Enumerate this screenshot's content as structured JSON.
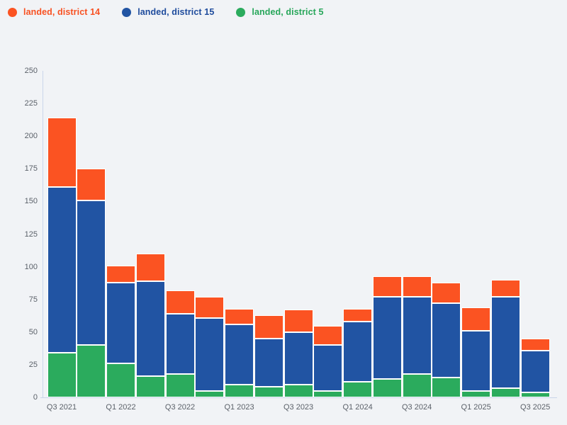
{
  "page": {
    "background_color": "#f1f3f6",
    "axis_line_color": "#c9d5ea",
    "tick_label_color": "#5b6169"
  },
  "legend": {
    "items": [
      {
        "label": "landed, district 14",
        "color": "#fb5322",
        "text_color": "#f85122"
      },
      {
        "label": "landed, district 15",
        "color": "#2154a3",
        "text_color": "#1e4b9c"
      },
      {
        "label": "landed, district 5",
        "color": "#2bab5d",
        "text_color": "#27a65a"
      }
    ]
  },
  "chart_data": {
    "type": "bar",
    "stacked": true,
    "title": "",
    "xlabel": "",
    "ylabel": "",
    "categories": [
      "Q3 2021",
      "Q4 2021",
      "Q1 2022",
      "Q2 2022",
      "Q3 2022",
      "Q4 2022",
      "Q1 2023",
      "Q2 2023",
      "Q3 2023",
      "Q4 2023",
      "Q1 2024",
      "Q2 2024",
      "Q3 2024",
      "Q4 2024",
      "Q1 2025",
      "Q2 2025",
      "Q3 2025"
    ],
    "x_tick_labels": [
      "Q3 2021",
      "Q1 2022",
      "Q3 2022",
      "Q1 2023",
      "Q3 2023",
      "Q1 2024",
      "Q3 2024",
      "Q1 2025",
      "Q3 2025"
    ],
    "x_tick_every": 2,
    "series": [
      {
        "name": "landed, district 5",
        "color": "#2bab5d",
        "values": [
          34,
          40,
          26,
          16,
          18,
          5,
          10,
          8,
          10,
          5,
          12,
          14,
          18,
          15,
          5,
          7,
          4
        ]
      },
      {
        "name": "landed, district 15",
        "color": "#2154a3",
        "values": [
          127,
          111,
          62,
          73,
          46,
          56,
          46,
          37,
          40,
          35,
          46,
          63,
          59,
          57,
          46,
          70,
          32
        ]
      },
      {
        "name": "landed, district 14",
        "color": "#fb5322",
        "values": [
          53,
          24,
          13,
          21,
          18,
          16,
          12,
          18,
          17,
          15,
          10,
          16,
          16,
          16,
          18,
          13,
          9
        ]
      }
    ],
    "stack_totals": [
      214,
      175,
      101,
      110,
      82,
      77,
      68,
      63,
      67,
      55,
      68,
      93,
      93,
      88,
      69,
      90,
      45
    ],
    "ylim": [
      0,
      250
    ],
    "y_ticks": [
      0,
      25,
      50,
      75,
      100,
      125,
      150,
      175,
      200,
      225,
      250
    ],
    "grid": false,
    "legend_position": "top-left"
  }
}
